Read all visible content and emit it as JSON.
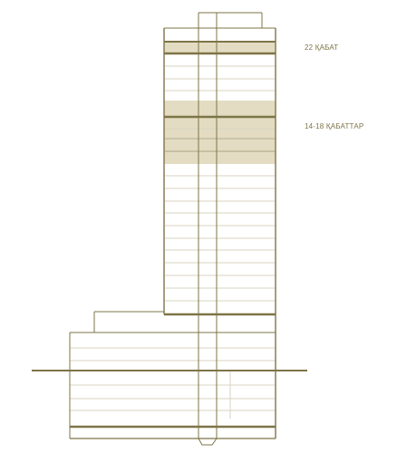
{
  "labels": {
    "floor_22": "22 ҚАБАТ",
    "floors_14_18": "14-18 ҚАБАТТАР"
  },
  "colors": {
    "outline": "#7d7447",
    "thin_line": "#d8d3c2",
    "highlight": "#e3dcc2",
    "label_text": "#7d7447"
  }
}
